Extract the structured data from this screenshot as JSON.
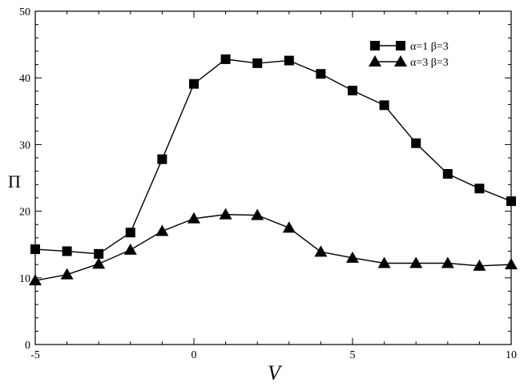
{
  "chart_data": {
    "type": "line",
    "title": "",
    "xlabel": "V",
    "ylabel": "Π",
    "xlim": [
      -5,
      10
    ],
    "ylim": [
      0,
      50
    ],
    "xticks": [
      -5,
      0,
      5,
      10
    ],
    "yticks": [
      0,
      10,
      20,
      30,
      40,
      50
    ],
    "grid": false,
    "legend_position": "top-right",
    "x": [
      -5,
      -4,
      -3,
      -2,
      -1,
      0,
      1,
      2,
      3,
      4,
      5,
      6,
      7,
      8,
      9,
      10
    ],
    "series": [
      {
        "name": "α=1 β=3",
        "marker": "square",
        "color": "#000000",
        "values": [
          14.3,
          14.0,
          13.6,
          16.8,
          27.8,
          39.1,
          42.8,
          42.2,
          42.6,
          40.6,
          38.1,
          35.9,
          30.2,
          25.6,
          23.4,
          21.5
        ]
      },
      {
        "name": "α=3 β=3",
        "marker": "triangle",
        "color": "#000000",
        "values": [
          9.6,
          10.5,
          12.1,
          14.2,
          17.0,
          18.9,
          19.5,
          19.4,
          17.5,
          13.9,
          13.0,
          12.2,
          12.2,
          12.2,
          11.8,
          12.0
        ]
      }
    ]
  }
}
